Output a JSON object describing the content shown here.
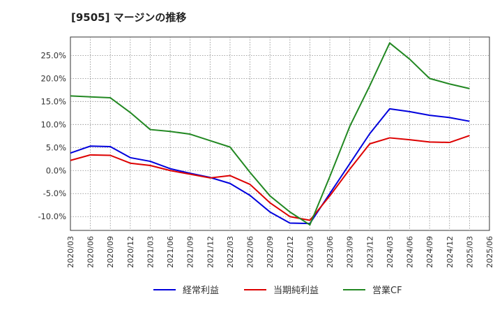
{
  "chart_data": {
    "type": "line",
    "title": "[9505]  マージンの推移",
    "x": [
      "2020/03",
      "2020/06",
      "2020/09",
      "2020/12",
      "2021/03",
      "2021/06",
      "2021/09",
      "2021/12",
      "2022/03",
      "2022/06",
      "2022/09",
      "2022/12",
      "2023/03",
      "2023/06",
      "2023/09",
      "2023/12",
      "2024/03",
      "2024/06",
      "2024/09",
      "2024/12",
      "2025/03",
      "2025/06"
    ],
    "y_ticks": [
      "25.0%",
      "20.0%",
      "15.0%",
      "10.0%",
      "5.0%",
      "0.0%",
      "-5.0%",
      "-10.0%"
    ],
    "y_tick_values": [
      25,
      20,
      15,
      10,
      5,
      0,
      -5,
      -10
    ],
    "ylim": [
      -13,
      29
    ],
    "grid": true,
    "legend_position": "bottom",
    "series": [
      {
        "name": "経常利益",
        "color": "#0000dd",
        "values": [
          3.8,
          5.3,
          5.2,
          2.8,
          2.0,
          0.4,
          -0.6,
          -1.5,
          -2.8,
          -5.4,
          -9.0,
          -11.4,
          -11.5,
          -5.0,
          1.5,
          8.0,
          13.4,
          12.8,
          12.0,
          11.5,
          10.7,
          null
        ]
      },
      {
        "name": "当期純利益",
        "color": "#dd0000",
        "values": [
          2.2,
          3.4,
          3.3,
          1.6,
          1.1,
          0.0,
          -0.8,
          -1.6,
          -1.1,
          -3.0,
          -7.0,
          -10.0,
          -10.8,
          -5.5,
          0.3,
          5.8,
          7.1,
          6.7,
          6.2,
          6.1,
          7.6,
          null
        ]
      },
      {
        "name": "営業CF",
        "color": "#228822",
        "values": [
          16.2,
          16.0,
          15.8,
          12.6,
          8.9,
          8.5,
          7.9,
          6.5,
          5.1,
          -0.4,
          -5.5,
          -9.0,
          -11.8,
          -1.3,
          9.6,
          18.4,
          27.7,
          24.2,
          20.0,
          18.8,
          17.8,
          null
        ]
      }
    ]
  }
}
